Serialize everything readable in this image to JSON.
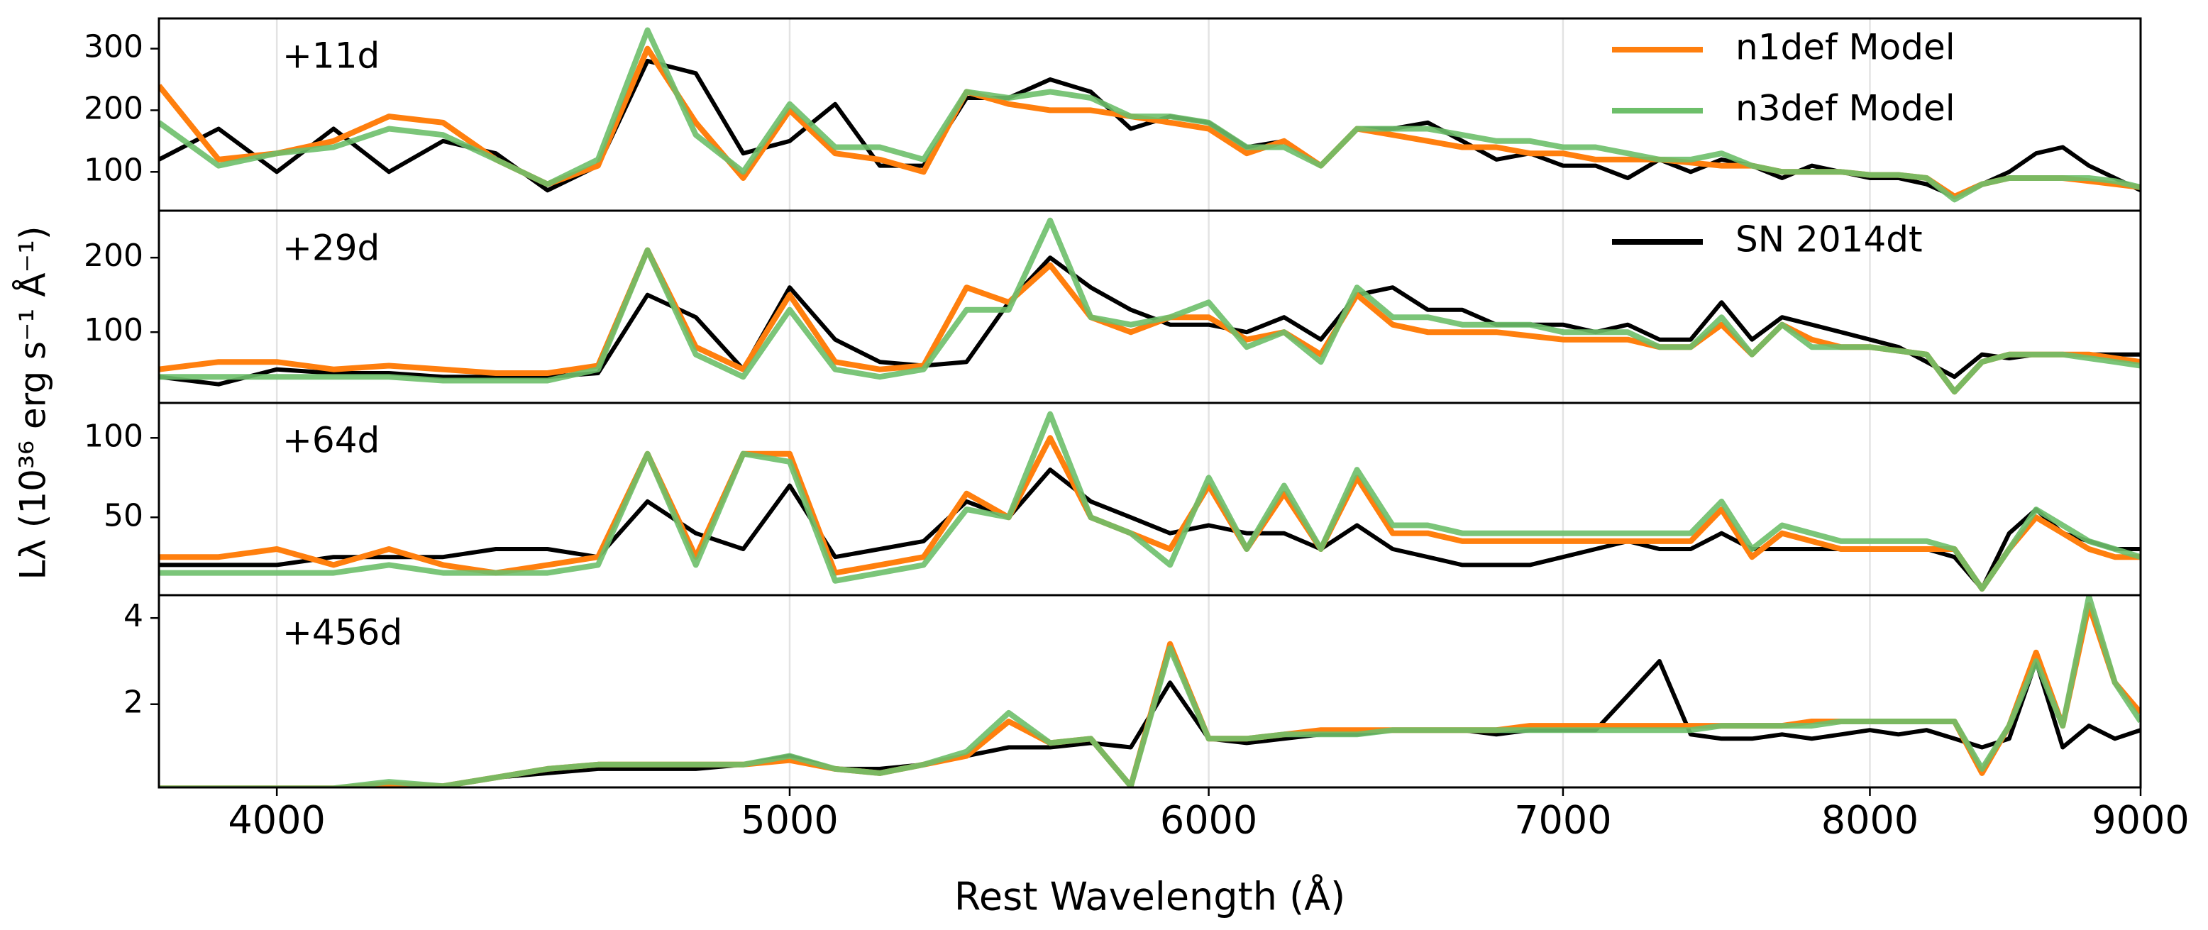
{
  "chart_data": [
    {
      "type": "line",
      "label": "+11d",
      "ylabel": "Lλ (10³⁶ erg s⁻¹ Å⁻¹)",
      "xscale": "log",
      "grid": true,
      "legend": "upper right",
      "xlim": [
        3800,
        9000
      ],
      "xticks": [
        4000,
        5000,
        6000,
        7000,
        8000,
        9000
      ],
      "ylim": [
        37,
        349
      ],
      "yticks": [
        100,
        200,
        300
      ],
      "x": [
        3800,
        3900,
        4000,
        4100,
        4200,
        4300,
        4400,
        4500,
        4600,
        4700,
        4800,
        4900,
        5000,
        5100,
        5200,
        5300,
        5400,
        5500,
        5600,
        5700,
        5800,
        5900,
        6000,
        6100,
        6200,
        6300,
        6400,
        6500,
        6600,
        6700,
        6800,
        6900,
        7000,
        7100,
        7200,
        7300,
        7400,
        7500,
        7600,
        7700,
        7800,
        7900,
        8000,
        8100,
        8200,
        8300,
        8400,
        8500,
        8600,
        8700,
        8800,
        8900,
        9000
      ],
      "series": [
        {
          "color": "#000000",
          "values": [
            120,
            170,
            100,
            170,
            100,
            150,
            130,
            70,
            110,
            280,
            260,
            130,
            150,
            210,
            110,
            110,
            220,
            220,
            250,
            230,
            170,
            190,
            180,
            140,
            150,
            110,
            170,
            170,
            180,
            150,
            120,
            130,
            110,
            110,
            90,
            120,
            100,
            120,
            110,
            90,
            110,
            100,
            90,
            90,
            80,
            60,
            80,
            100,
            130,
            140,
            110,
            90,
            70
          ]
        },
        {
          "name": "n1def Model",
          "color": "#ff7f0e",
          "values": [
            240,
            120,
            130,
            150,
            190,
            180,
            120,
            80,
            110,
            300,
            180,
            90,
            200,
            130,
            120,
            100,
            230,
            210,
            200,
            200,
            190,
            180,
            170,
            130,
            150,
            110,
            170,
            160,
            150,
            140,
            140,
            130,
            130,
            120,
            120,
            120,
            115,
            110,
            110,
            100,
            100,
            100,
            95,
            95,
            90,
            60,
            80,
            90,
            90,
            90,
            85,
            80,
            75
          ]
        },
        {
          "name": "n3def Model",
          "color": "#6dbf6a",
          "values": [
            180,
            110,
            130,
            140,
            170,
            160,
            120,
            80,
            120,
            330,
            160,
            100,
            210,
            140,
            140,
            120,
            230,
            220,
            230,
            220,
            190,
            190,
            180,
            140,
            140,
            110,
            170,
            170,
            170,
            160,
            150,
            150,
            140,
            140,
            130,
            120,
            120,
            130,
            110,
            100,
            100,
            100,
            95,
            95,
            90,
            55,
            80,
            90,
            90,
            90,
            90,
            85,
            75
          ]
        }
      ]
    },
    {
      "type": "line",
      "label": "+29d",
      "xscale": "log",
      "grid": true,
      "legend": "upper right",
      "xlim": [
        3800,
        9000
      ],
      "xticks": [
        4000,
        5000,
        6000,
        7000,
        8000,
        9000
      ],
      "ylim": [
        5,
        263
      ],
      "yticks": [
        100,
        200
      ],
      "x": [
        3800,
        3900,
        4000,
        4100,
        4200,
        4300,
        4400,
        4500,
        4600,
        4700,
        4800,
        4900,
        5000,
        5100,
        5200,
        5300,
        5400,
        5500,
        5600,
        5700,
        5800,
        5900,
        6000,
        6100,
        6200,
        6300,
        6400,
        6500,
        6600,
        6700,
        6800,
        6900,
        7000,
        7100,
        7200,
        7300,
        7400,
        7500,
        7600,
        7700,
        7800,
        7900,
        8000,
        8100,
        8200,
        8300,
        8400,
        8500,
        8600,
        8700,
        8800,
        8900,
        9000
      ],
      "series": [
        {
          "name": "SN 2014dt",
          "color": "#000000",
          "values": [
            40,
            30,
            50,
            45,
            45,
            40,
            40,
            40,
            45,
            150,
            120,
            50,
            160,
            90,
            60,
            55,
            60,
            140,
            200,
            160,
            130,
            110,
            110,
            100,
            120,
            90,
            150,
            160,
            130,
            130,
            110,
            110,
            110,
            100,
            110,
            90,
            90,
            140,
            90,
            120,
            110,
            100,
            90,
            80,
            60,
            40,
            70,
            65,
            70,
            70,
            70,
            70,
            70
          ]
        },
        {
          "color": "#ff7f0e",
          "values": [
            50,
            60,
            60,
            50,
            55,
            50,
            45,
            45,
            55,
            210,
            80,
            50,
            150,
            60,
            50,
            55,
            160,
            140,
            190,
            120,
            100,
            120,
            120,
            90,
            100,
            70,
            150,
            110,
            100,
            100,
            100,
            95,
            90,
            90,
            90,
            80,
            80,
            110,
            70,
            110,
            90,
            80,
            80,
            75,
            70,
            20,
            60,
            70,
            70,
            70,
            70,
            65,
            60
          ]
        },
        {
          "color": "#6dbf6a",
          "values": [
            40,
            40,
            40,
            40,
            40,
            35,
            35,
            35,
            50,
            210,
            70,
            40,
            130,
            50,
            40,
            50,
            130,
            130,
            250,
            120,
            110,
            120,
            140,
            80,
            100,
            60,
            160,
            120,
            120,
            110,
            110,
            110,
            100,
            100,
            100,
            80,
            80,
            120,
            70,
            110,
            80,
            80,
            80,
            75,
            70,
            20,
            60,
            70,
            70,
            70,
            65,
            60,
            55
          ]
        }
      ]
    },
    {
      "type": "line",
      "label": "+64d",
      "xscale": "log",
      "grid": true,
      "xlim": [
        3800,
        9000
      ],
      "xticks": [
        4000,
        5000,
        6000,
        7000,
        8000,
        9000
      ],
      "ylim": [
        1,
        122
      ],
      "yticks": [
        50,
        100
      ],
      "x": [
        3800,
        3900,
        4000,
        4100,
        4200,
        4300,
        4400,
        4500,
        4600,
        4700,
        4800,
        4900,
        5000,
        5100,
        5200,
        5300,
        5400,
        5500,
        5600,
        5700,
        5800,
        5900,
        6000,
        6100,
        6200,
        6300,
        6400,
        6500,
        6600,
        6700,
        6800,
        6900,
        7000,
        7100,
        7200,
        7300,
        7400,
        7500,
        7600,
        7700,
        7800,
        7900,
        8000,
        8100,
        8200,
        8300,
        8400,
        8500,
        8600,
        8700,
        8800,
        8900,
        9000
      ],
      "series": [
        {
          "color": "#000000",
          "values": [
            20,
            20,
            20,
            25,
            25,
            25,
            30,
            30,
            25,
            60,
            40,
            30,
            70,
            25,
            30,
            35,
            60,
            50,
            80,
            60,
            50,
            40,
            45,
            40,
            40,
            30,
            45,
            30,
            25,
            20,
            20,
            20,
            25,
            30,
            35,
            30,
            30,
            40,
            30,
            30,
            30,
            30,
            30,
            30,
            30,
            25,
            5,
            40,
            55,
            40,
            35,
            30,
            30
          ]
        },
        {
          "color": "#ff7f0e",
          "values": [
            25,
            25,
            30,
            20,
            30,
            20,
            15,
            20,
            25,
            90,
            25,
            90,
            90,
            15,
            20,
            25,
            65,
            50,
            100,
            50,
            40,
            30,
            70,
            30,
            65,
            30,
            75,
            40,
            40,
            35,
            35,
            35,
            35,
            35,
            35,
            35,
            35,
            55,
            25,
            40,
            35,
            30,
            30,
            30,
            30,
            30,
            5,
            30,
            50,
            40,
            30,
            25,
            25
          ]
        },
        {
          "color": "#6dbf6a",
          "values": [
            15,
            15,
            15,
            15,
            20,
            15,
            15,
            15,
            20,
            90,
            20,
            90,
            85,
            10,
            15,
            20,
            55,
            50,
            115,
            50,
            40,
            20,
            75,
            30,
            70,
            30,
            80,
            45,
            45,
            40,
            40,
            40,
            40,
            40,
            40,
            40,
            40,
            60,
            30,
            45,
            40,
            35,
            35,
            35,
            35,
            30,
            5,
            30,
            55,
            45,
            35,
            30,
            25
          ]
        }
      ]
    },
    {
      "type": "line",
      "label": "+456d",
      "xlabel": "Rest Wavelength (Å)",
      "xscale": "log",
      "grid": true,
      "xlim": [
        3800,
        9000
      ],
      "xticks": [
        4000,
        5000,
        6000,
        7000,
        8000,
        9000
      ],
      "ylim": [
        0.07,
        4.53
      ],
      "yticks": [
        2,
        4
      ],
      "x": [
        3800,
        3900,
        4000,
        4100,
        4200,
        4300,
        4400,
        4500,
        4600,
        4700,
        4800,
        4900,
        5000,
        5100,
        5200,
        5300,
        5400,
        5500,
        5600,
        5700,
        5800,
        5900,
        6000,
        6100,
        6200,
        6300,
        6400,
        6500,
        6600,
        6700,
        6800,
        6900,
        7000,
        7100,
        7200,
        7300,
        7400,
        7500,
        7600,
        7700,
        7800,
        7900,
        8000,
        8100,
        8200,
        8300,
        8400,
        8500,
        8600,
        8700,
        8800,
        8900,
        9000
      ],
      "series": [
        {
          "color": "#000000",
          "values": [
            0.05,
            0.05,
            0.05,
            0.05,
            0.1,
            0.1,
            0.3,
            0.4,
            0.5,
            0.5,
            0.5,
            0.6,
            0.8,
            0.5,
            0.5,
            0.6,
            0.8,
            1.0,
            1.0,
            1.1,
            1.0,
            2.5,
            1.2,
            1.1,
            1.2,
            1.3,
            1.3,
            1.4,
            1.4,
            1.4,
            1.3,
            1.4,
            1.4,
            1.4,
            2.2,
            3.0,
            1.3,
            1.2,
            1.2,
            1.3,
            1.2,
            1.3,
            1.4,
            1.3,
            1.4,
            1.2,
            1.0,
            1.2,
            3.0,
            1.0,
            1.5,
            1.2,
            1.4
          ]
        },
        {
          "color": "#ff7f0e",
          "values": [
            0.05,
            0.05,
            0.05,
            0.05,
            0.15,
            0.1,
            0.3,
            0.5,
            0.6,
            0.6,
            0.6,
            0.6,
            0.7,
            0.5,
            0.4,
            0.6,
            0.8,
            1.6,
            1.1,
            1.2,
            0.1,
            3.4,
            1.2,
            1.2,
            1.3,
            1.4,
            1.4,
            1.4,
            1.4,
            1.4,
            1.4,
            1.5,
            1.5,
            1.5,
            1.5,
            1.5,
            1.5,
            1.5,
            1.5,
            1.5,
            1.6,
            1.6,
            1.6,
            1.6,
            1.6,
            1.6,
            0.4,
            1.5,
            3.2,
            1.5,
            4.3,
            2.5,
            1.8
          ]
        },
        {
          "color": "#6dbf6a",
          "values": [
            0.05,
            0.05,
            0.05,
            0.05,
            0.2,
            0.1,
            0.3,
            0.5,
            0.6,
            0.6,
            0.6,
            0.6,
            0.8,
            0.5,
            0.4,
            0.6,
            0.9,
            1.8,
            1.1,
            1.2,
            0.1,
            3.3,
            1.2,
            1.2,
            1.3,
            1.3,
            1.3,
            1.4,
            1.4,
            1.4,
            1.4,
            1.4,
            1.4,
            1.4,
            1.4,
            1.4,
            1.4,
            1.5,
            1.5,
            1.5,
            1.5,
            1.6,
            1.6,
            1.6,
            1.6,
            1.6,
            0.5,
            1.5,
            3.0,
            1.5,
            4.5,
            2.5,
            1.6
          ]
        }
      ]
    }
  ]
}
